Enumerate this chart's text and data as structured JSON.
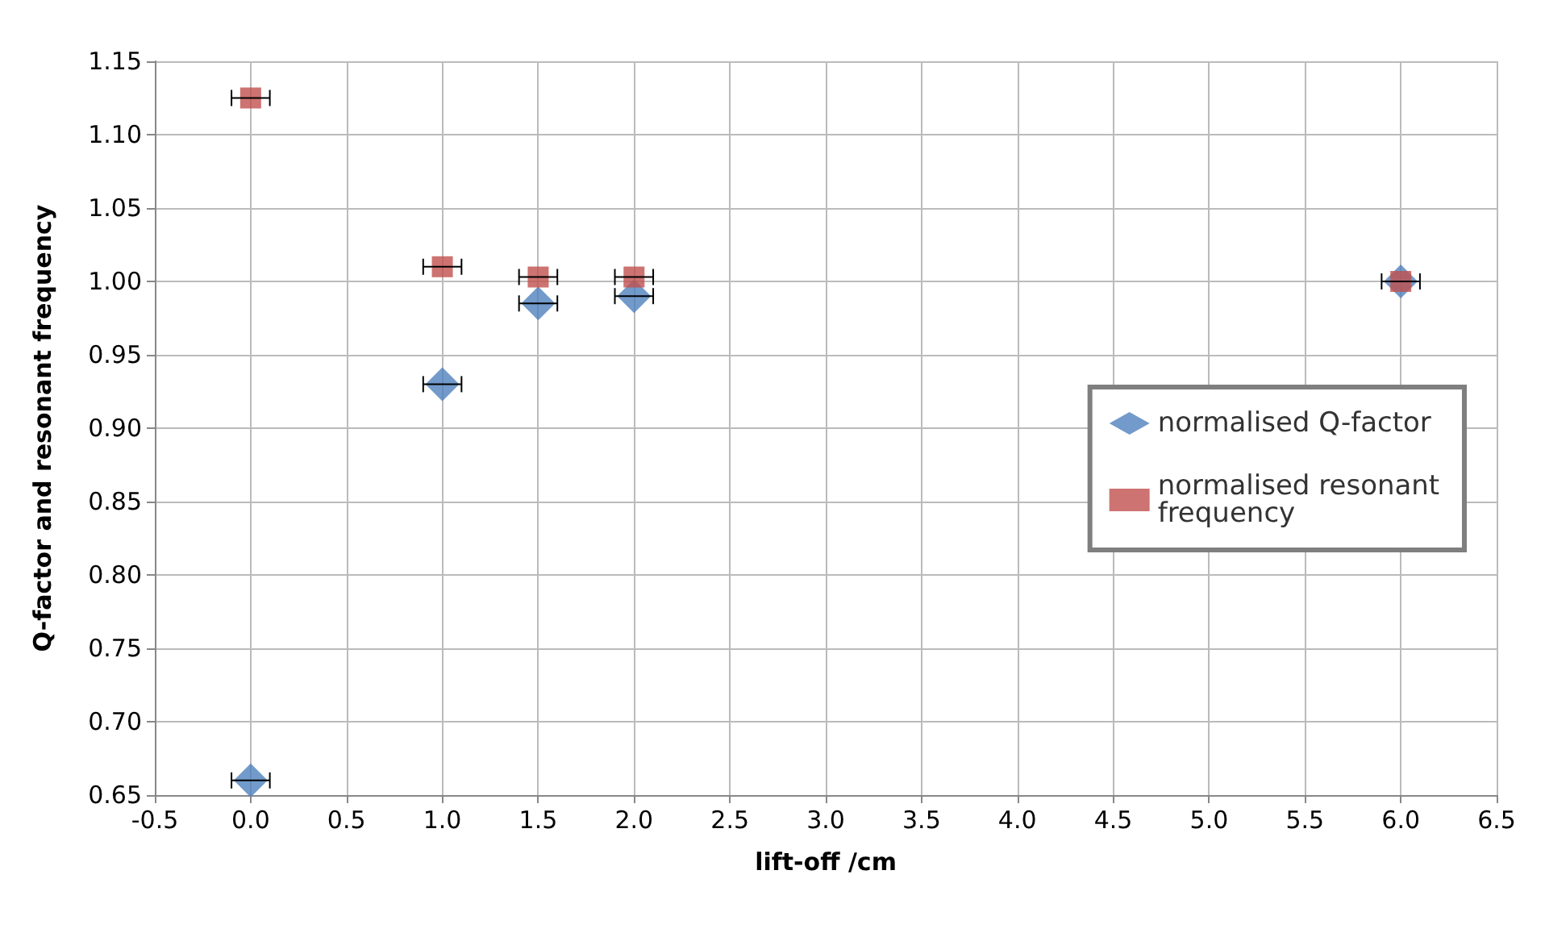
{
  "chart_data": {
    "type": "scatter",
    "xlabel": "lift-off /cm",
    "ylabel": "Q-factor and resonant frequency",
    "x": [
      0,
      1,
      1.5,
      2,
      6
    ],
    "series": [
      {
        "name": "normalised Q-factor",
        "color": "#4f81bd",
        "marker": "diamond",
        "values": [
          0.66,
          0.93,
          0.985,
          0.99,
          1.0
        ],
        "xerrors": [
          0.1,
          0.1,
          0.1,
          0.1,
          0.1
        ]
      },
      {
        "name": "normalised resonant frequency",
        "color": "#c0504d",
        "marker": "square",
        "values": [
          1.125,
          1.01,
          1.003,
          1.003,
          1.0
        ],
        "xerrors": [
          0.1,
          0.1,
          0.1,
          0.1,
          0.1
        ]
      }
    ],
    "xlim": [
      -0.5,
      6.5
    ],
    "xticks": [
      -0.5,
      {
        "value": 0,
        "label": "0.0"
      },
      0.5,
      {
        "value": 1,
        "label": "1.0"
      },
      1.5,
      {
        "value": 2,
        "label": "2.0"
      },
      2.5,
      {
        "value": 3,
        "label": "3.0"
      },
      3.5,
      {
        "value": 4,
        "label": "4.0"
      },
      4.5,
      {
        "value": 5,
        "label": "5.0"
      },
      5.5,
      {
        "value": 6,
        "label": "6.0"
      },
      6.5
    ],
    "ylim": [
      0.65,
      1.15
    ],
    "yticks": [
      0.65,
      {
        "value": 0.7,
        "label": "0.70"
      },
      0.75,
      {
        "value": 0.8,
        "label": "0.80"
      },
      0.85,
      {
        "value": 0.9,
        "label": "0.90"
      },
      0.95,
      {
        "value": 1,
        "label": "1.00"
      },
      1.05,
      {
        "value": 1.1,
        "label": "1.10"
      },
      1.15
    ],
    "grid": true,
    "legend": "right"
  }
}
